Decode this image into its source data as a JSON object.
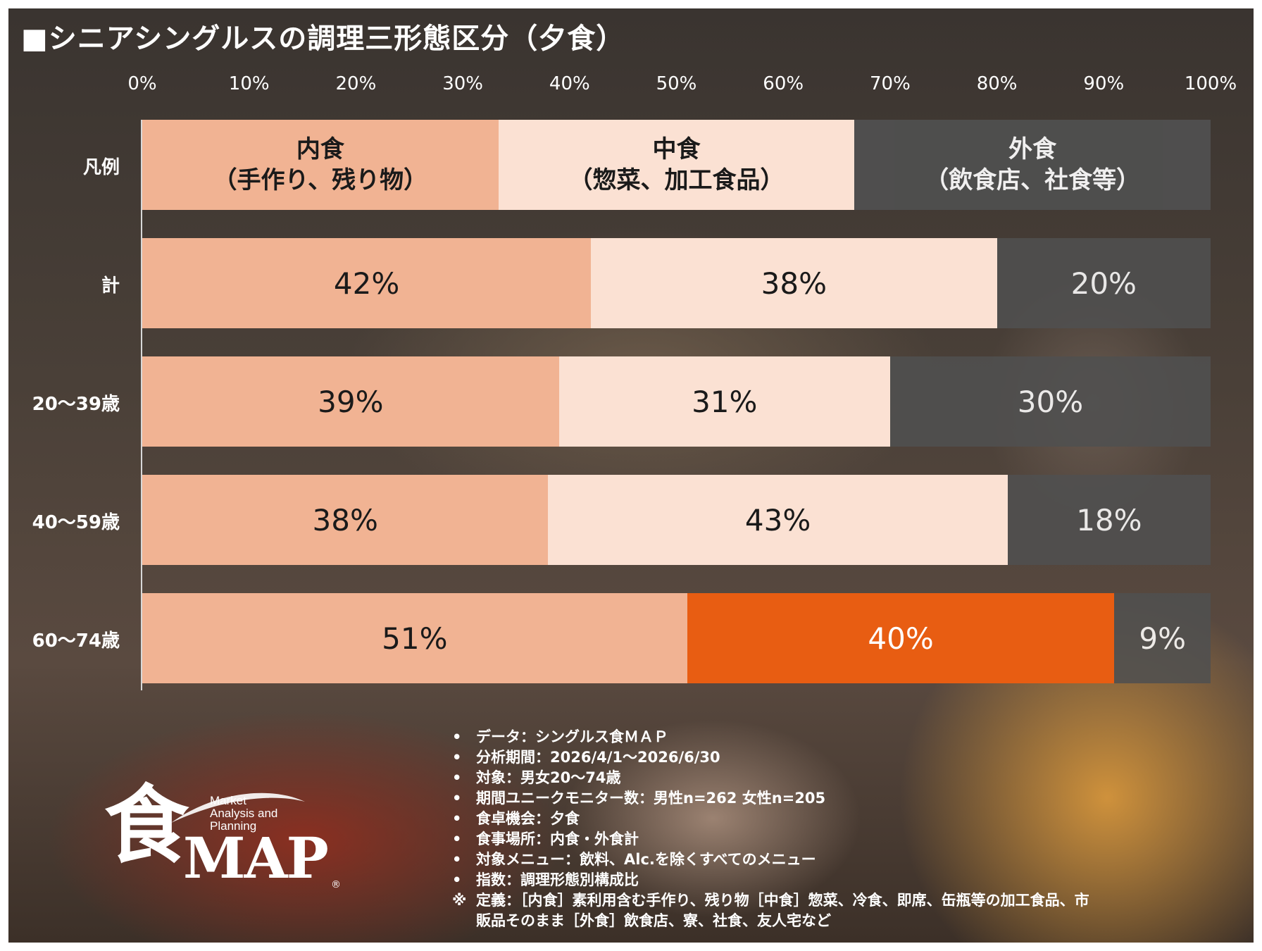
{
  "title": "■シニアシングルスの調理三形態区分（夕食）",
  "chart_data": {
    "type": "bar",
    "orientation": "horizontal",
    "stacked": true,
    "xlim": [
      0,
      100
    ],
    "x_ticks": [
      "0%",
      "10%",
      "20%",
      "30%",
      "40%",
      "50%",
      "60%",
      "70%",
      "80%",
      "90%",
      "100%"
    ],
    "legend": {
      "label": "凡例",
      "entries": [
        {
          "line1": "内食",
          "line2": "（手作り、残り物）",
          "color": "#f1b393"
        },
        {
          "line1": "中食",
          "line2": "（惣菜、加工食品）",
          "color": "#fbe1d3"
        },
        {
          "line1": "外食",
          "line2": "（飲食店、社食等）",
          "color": "#505050"
        }
      ]
    },
    "categories": [
      "計",
      "20～39歳",
      "40～59歳",
      "60～74歳"
    ],
    "series": [
      {
        "name": "内食",
        "values": [
          42,
          39,
          38,
          51
        ],
        "labels": [
          "42%",
          "39%",
          "38%",
          "51%"
        ]
      },
      {
        "name": "中食",
        "values": [
          38,
          31,
          43,
          40
        ],
        "labels": [
          "38%",
          "31%",
          "43%",
          "40%"
        ]
      },
      {
        "name": "外食",
        "values": [
          20,
          30,
          18,
          9
        ],
        "labels": [
          "20%",
          "30%",
          "18%",
          "9%"
        ]
      }
    ],
    "highlight": {
      "row": 3,
      "series": 1,
      "color": "#e85d12"
    }
  },
  "notes": [
    {
      "bullet": "•",
      "text": "データ：シングルス食ＭＡＰ"
    },
    {
      "bullet": "•",
      "text": "分析期間：2026/4/1～2026/6/30"
    },
    {
      "bullet": "•",
      "text": "対象：男女20～74歳"
    },
    {
      "bullet": "•",
      "text": "期間ユニークモニター数：男性n=262 女性n=205"
    },
    {
      "bullet": "•",
      "text": "食卓機会：夕食"
    },
    {
      "bullet": "•",
      "text": "食事場所：内食・外食計"
    },
    {
      "bullet": "•",
      "text": "対象メニュー：飲料、Alc.を除くすべてのメニュー"
    },
    {
      "bullet": "•",
      "text": "指数：調理形態別構成比"
    },
    {
      "bullet": "※",
      "text": "定義：［内食］素利用含む手作り、残り物［中食］惣菜、冷食、即席、缶瓶等の加工食品、市"
    },
    {
      "bullet": "",
      "text": "販品そのまま［外食］飲食店、寮、社食、友人宅など"
    }
  ],
  "logo": {
    "kanji": "食",
    "map": "MAP",
    "reg": "®",
    "sub": [
      "Market",
      "Analysis and",
      "Planning"
    ]
  }
}
